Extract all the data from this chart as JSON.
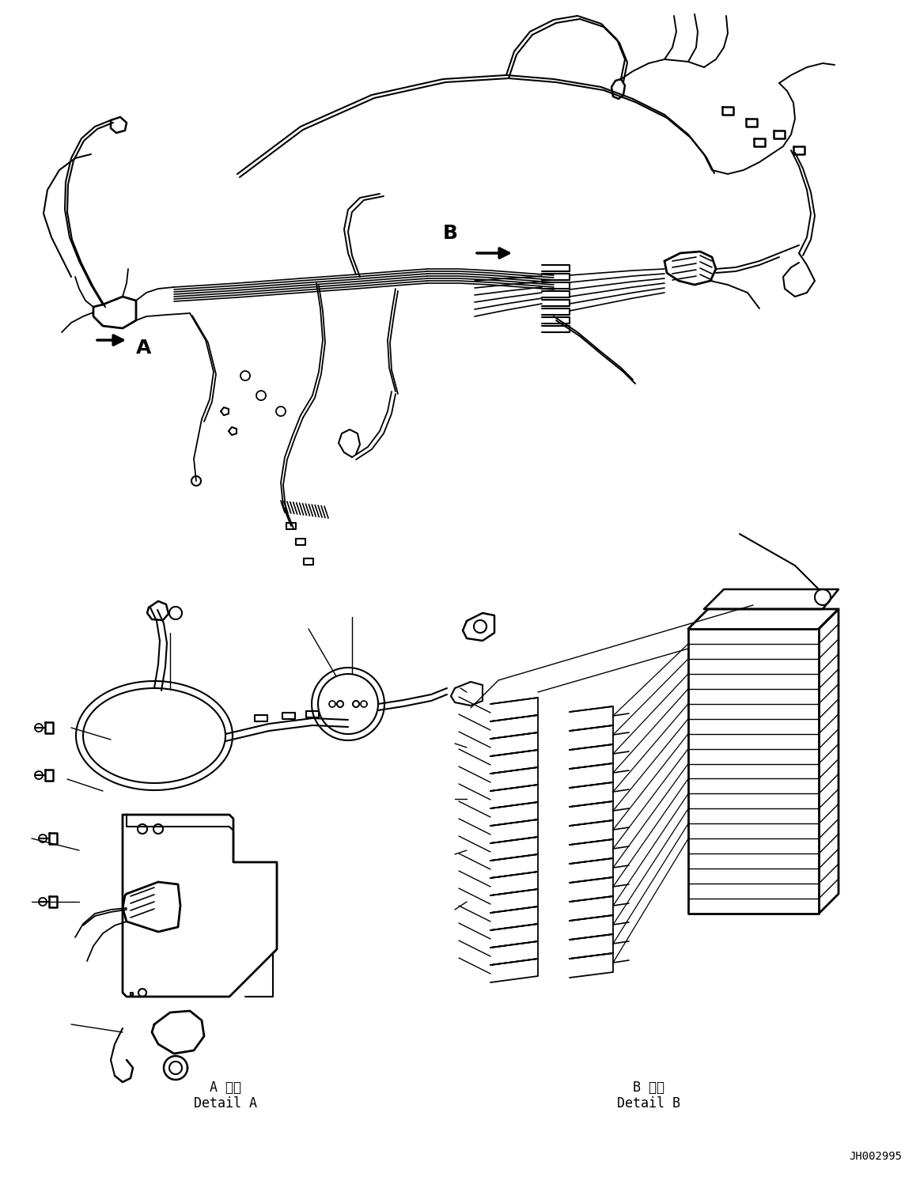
{
  "background_color": "#ffffff",
  "line_color": "#000000",
  "fig_width": 11.63,
  "fig_height": 14.88,
  "dpi": 100,
  "detail_A_jp": "A 詳細",
  "detail_A_en": "Detail A",
  "detail_B_jp": "B 詳細",
  "detail_B_en": "Detail B",
  "part_number": "JH002995"
}
